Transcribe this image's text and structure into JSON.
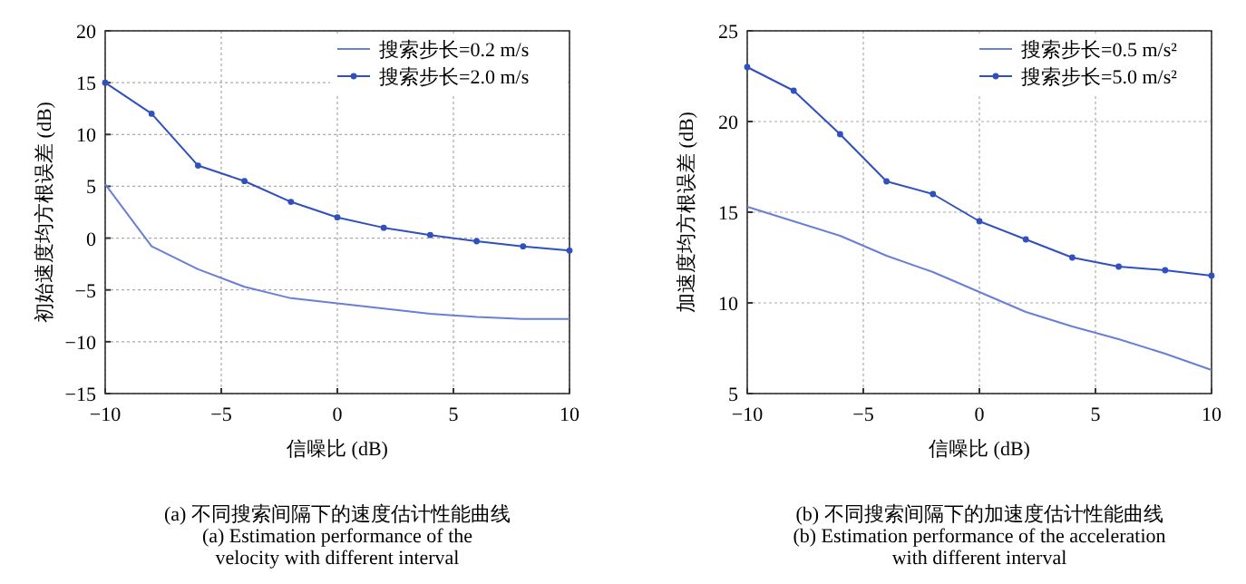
{
  "chart_data": [
    {
      "type": "line",
      "xlabel": "信噪比 (dB)",
      "ylabel": "初始速度均方根误差 (dB)",
      "x": [
        -10,
        -8,
        -6,
        -4,
        -2,
        0,
        2,
        4,
        6,
        8,
        10
      ],
      "xlim": [
        -10,
        10
      ],
      "xticks": [
        -10,
        -5,
        0,
        5,
        10
      ],
      "ylim": [
        -15,
        20
      ],
      "yticks": [
        -15,
        -10,
        -5,
        0,
        5,
        10,
        15,
        20
      ],
      "grid": true,
      "legend": "top right",
      "series": [
        {
          "name": "搜索步长=0.2 m/s",
          "color": "#6a7fd6",
          "marker": "none",
          "values": [
            5.2,
            -0.8,
            -3.0,
            -4.7,
            -5.8,
            -6.3,
            -6.8,
            -7.3,
            -7.6,
            -7.8,
            -7.8
          ]
        },
        {
          "name": "搜索步长=2.0 m/s",
          "color": "#3050c0",
          "marker": "circle",
          "values": [
            15,
            12,
            7,
            5.5,
            3.5,
            2,
            1,
            0.3,
            -0.3,
            -0.8,
            -1.2
          ]
        }
      ],
      "annotations": [
        "(a) 不同搜索间隔下的速度估计性能曲线",
        "(a) Estimation performance of the",
        "velocity with different interval"
      ]
    },
    {
      "type": "line",
      "xlabel": "信噪比 (dB)",
      "ylabel": "加速度均方根误差 (dB)",
      "x": [
        -10,
        -8,
        -6,
        -4,
        -2,
        0,
        2,
        4,
        6,
        8,
        10
      ],
      "xlim": [
        -10,
        10
      ],
      "xticks": [
        -10,
        -5,
        0,
        5,
        10
      ],
      "ylim": [
        5,
        25
      ],
      "yticks": [
        5,
        10,
        15,
        20,
        25
      ],
      "grid": true,
      "legend": "top right",
      "series": [
        {
          "name": "搜索步长=0.5 m/s²",
          "color": "#6a7fd6",
          "marker": "none",
          "values": [
            15.3,
            14.5,
            13.7,
            12.6,
            11.7,
            10.6,
            9.5,
            8.7,
            8.0,
            7.2,
            6.3
          ]
        },
        {
          "name": "搜索步长=5.0 m/s²",
          "color": "#3050c0",
          "marker": "circle",
          "values": [
            23,
            21.7,
            19.3,
            16.7,
            16.0,
            14.5,
            13.5,
            12.5,
            12.0,
            11.8,
            11.5
          ]
        }
      ],
      "annotations": [
        "(b) 不同搜索间隔下的加速度估计性能曲线",
        "(b) Estimation performance of the acceleration",
        "with different interval"
      ]
    }
  ]
}
